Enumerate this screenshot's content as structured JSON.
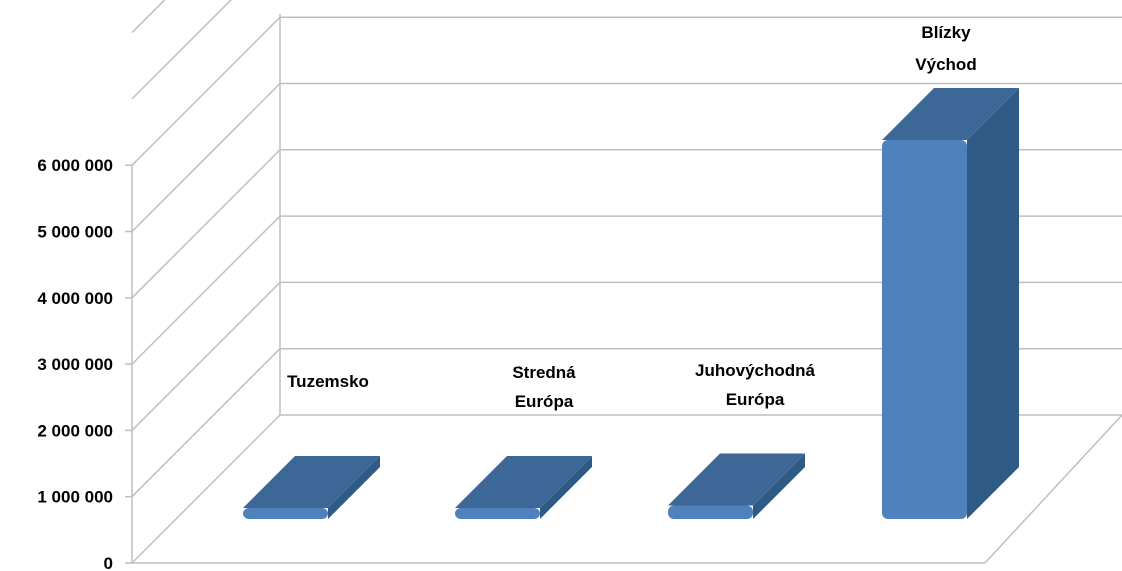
{
  "chart_data": {
    "type": "bar",
    "three_d": true,
    "grid": true,
    "legend": "none",
    "title": "",
    "xlabel": "",
    "ylabel": "",
    "ylim": [
      0,
      6000000
    ],
    "yticks": [
      0,
      1000000,
      2000000,
      3000000,
      4000000,
      5000000,
      6000000
    ],
    "ytick_labels": [
      "0",
      "1 000 000",
      "2 000 000",
      "3 000 000",
      "4 000 000",
      "5 000 000",
      "6 000 000"
    ],
    "categories": [
      [
        "Tuzemsko"
      ],
      [
        "Stredná",
        "Európa"
      ],
      [
        "Juhovýchodná",
        "Európa"
      ],
      [
        "Blízky",
        "Východ"
      ]
    ],
    "values": [
      150000,
      150000,
      200000,
      5600000
    ],
    "colors": {
      "bar_front": "#4f81bd",
      "bar_top": "#3d6797",
      "bar_side": "#2f5a85",
      "grid": "#bfbfbf"
    }
  }
}
